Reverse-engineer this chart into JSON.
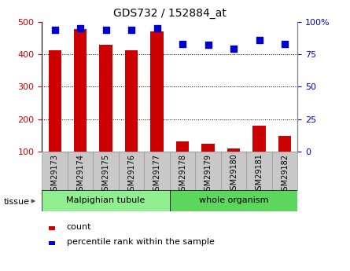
{
  "title": "GDS732 / 152884_at",
  "samples": [
    "GSM29173",
    "GSM29174",
    "GSM29175",
    "GSM29176",
    "GSM29177",
    "GSM29178",
    "GSM29179",
    "GSM29180",
    "GSM29181",
    "GSM29182"
  ],
  "counts": [
    412,
    478,
    428,
    412,
    470,
    133,
    124,
    110,
    180,
    149
  ],
  "percentile_ranks": [
    94,
    95,
    94,
    94,
    95,
    83,
    82,
    79,
    86,
    83
  ],
  "tissue_groups": [
    {
      "label": "Malpighian tubule",
      "start": 0,
      "end": 5,
      "color": "#90EE90"
    },
    {
      "label": "whole organism",
      "start": 5,
      "end": 10,
      "color": "#5CD65C"
    }
  ],
  "bar_color": "#CC0000",
  "dot_color": "#0000CC",
  "left_ylim": [
    100,
    500
  ],
  "left_yticks": [
    100,
    200,
    300,
    400,
    500
  ],
  "right_yticks": [
    0,
    25,
    50,
    75,
    100
  ],
  "right_yticklabels": [
    "0",
    "25",
    "50",
    "75",
    "100%"
  ],
  "grid_values": [
    200,
    300,
    400
  ],
  "tick_label_color_left": "#CC0000",
  "tick_label_color_right": "#0000CC",
  "legend_count_label": "count",
  "legend_pct_label": "percentile rank within the sample",
  "tissue_label": "tissue",
  "bar_width": 0.5,
  "dot_size": 40,
  "xlabel_gray": "#C8C8C8",
  "xlabel_gray_border": "#999999"
}
